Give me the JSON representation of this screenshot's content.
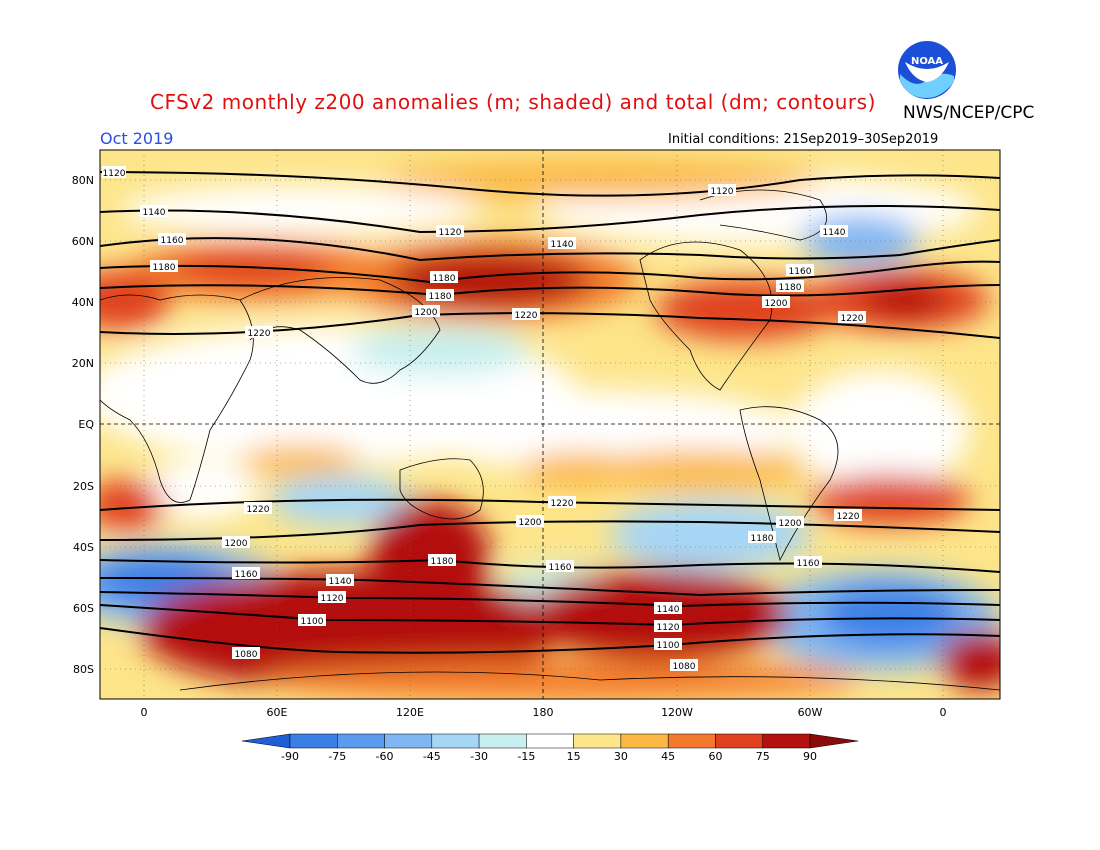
{
  "title": "CFSv2 monthly z200 anomalies (m; shaded) and total (dm; contours)",
  "agency": "NWS/NCEP/CPC",
  "month": "Oct 2019",
  "initial_conditions": "Initial conditions: 21Sep2019–30Sep2019",
  "logo_text": "NOAA",
  "lat_labels": [
    "80N",
    "60N",
    "40N",
    "20N",
    "EQ",
    "20S",
    "40S",
    "60S",
    "80S"
  ],
  "lon_labels": [
    "0",
    "60E",
    "120E",
    "180",
    "120W",
    "60W",
    "0"
  ],
  "colorbar": {
    "ticks": [
      "-90",
      "-75",
      "-60",
      "-45",
      "-30",
      "-15",
      "15",
      "30",
      "45",
      "60",
      "75",
      "90"
    ],
    "colors": [
      "#1f5fd6",
      "#3a7fe6",
      "#5b9bef",
      "#7fb6f3",
      "#a6d6f6",
      "#c8efef",
      "#ffffff",
      "#fde58a",
      "#fbb845",
      "#f37a2c",
      "#e0401f",
      "#b41010",
      "#8c0a0a"
    ]
  },
  "contour_labels": [
    "1080",
    "1100",
    "1120",
    "1140",
    "1160",
    "1180",
    "1200",
    "1220"
  ],
  "map_legend": {
    "shaded": "anomalies (m)",
    "contours": "total (dm)"
  }
}
